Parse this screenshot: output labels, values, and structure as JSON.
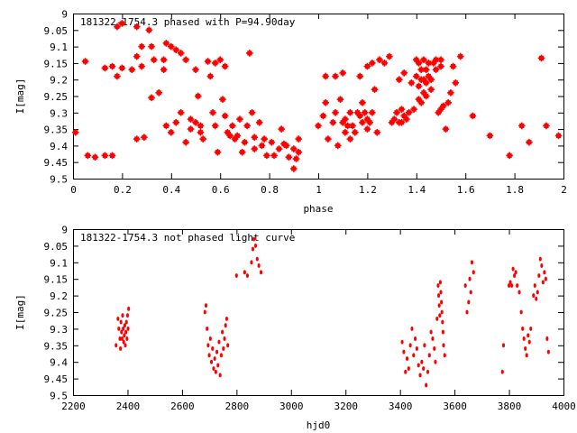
{
  "chart_data": [
    {
      "type": "scatter",
      "title": "181322-1754.3 phased with P=94.90day",
      "xlabel": "phase",
      "ylabel": "I[mag]",
      "xlim": [
        0,
        2
      ],
      "ylim": [
        9,
        9.5
      ],
      "y_inverted": true,
      "x_ticks": [
        "0",
        "0.2",
        "0.4",
        "0.6",
        "0.8",
        "1",
        "1.2",
        "1.4",
        "1.6",
        "1.8",
        "2"
      ],
      "y_ticks": [
        "9",
        "9.05",
        "9.1",
        "9.15",
        "9.2",
        "9.25",
        "9.3",
        "9.35",
        "9.4",
        "9.45",
        "9.5"
      ],
      "marker_color": "#ff0000",
      "grid": false,
      "points": [
        [
          0.01,
          9.36
        ],
        [
          0.05,
          9.145
        ],
        [
          0.06,
          9.43
        ],
        [
          0.09,
          9.435
        ],
        [
          0.13,
          9.43
        ],
        [
          0.13,
          9.165
        ],
        [
          0.16,
          9.43
        ],
        [
          0.16,
          9.16
        ],
        [
          0.18,
          9.19
        ],
        [
          0.18,
          9.04
        ],
        [
          0.2,
          9.165
        ],
        [
          0.2,
          9.03
        ],
        [
          0.24,
          9.17
        ],
        [
          0.26,
          9.38
        ],
        [
          0.26,
          9.04
        ],
        [
          0.26,
          9.13
        ],
        [
          0.28,
          9.1
        ],
        [
          0.28,
          9.16
        ],
        [
          0.29,
          9.375
        ],
        [
          0.31,
          9.05
        ],
        [
          0.32,
          9.255
        ],
        [
          0.32,
          9.1
        ],
        [
          0.33,
          9.14
        ],
        [
          0.35,
          9.24
        ],
        [
          0.37,
          9.14
        ],
        [
          0.37,
          9.17
        ],
        [
          0.38,
          9.34
        ],
        [
          0.38,
          9.09
        ],
        [
          0.4,
          9.36
        ],
        [
          0.4,
          9.1
        ],
        [
          0.42,
          9.33
        ],
        [
          0.42,
          9.11
        ],
        [
          0.44,
          9.12
        ],
        [
          0.44,
          9.3
        ],
        [
          0.46,
          9.14
        ],
        [
          0.46,
          9.39
        ],
        [
          0.48,
          9.32
        ],
        [
          0.48,
          9.35
        ],
        [
          0.5,
          9.33
        ],
        [
          0.5,
          9.17
        ],
        [
          0.51,
          9.25
        ],
        [
          0.52,
          9.34
        ],
        [
          0.52,
          9.36
        ],
        [
          0.53,
          9.38
        ],
        [
          0.55,
          9.145
        ],
        [
          0.56,
          9.19
        ],
        [
          0.57,
          9.3
        ],
        [
          0.58,
          9.34
        ],
        [
          0.58,
          9.15
        ],
        [
          0.59,
          9.42
        ],
        [
          0.6,
          9.14
        ],
        [
          0.61,
          9.26
        ],
        [
          0.62,
          9.16
        ],
        [
          0.62,
          9.31
        ],
        [
          0.63,
          9.36
        ],
        [
          0.64,
          9.37
        ],
        [
          0.65,
          9.34
        ],
        [
          0.66,
          9.38
        ],
        [
          0.67,
          9.37
        ],
        [
          0.68,
          9.32
        ],
        [
          0.69,
          9.42
        ],
        [
          0.7,
          9.39
        ],
        [
          0.71,
          9.34
        ],
        [
          0.72,
          9.12
        ],
        [
          0.73,
          9.3
        ],
        [
          0.74,
          9.41
        ],
        [
          0.74,
          9.375
        ],
        [
          0.76,
          9.33
        ],
        [
          0.77,
          9.4
        ],
        [
          0.78,
          9.38
        ],
        [
          0.79,
          9.43
        ],
        [
          0.81,
          9.39
        ],
        [
          0.82,
          9.43
        ],
        [
          0.84,
          9.41
        ],
        [
          0.85,
          9.35
        ],
        [
          0.86,
          9.395
        ],
        [
          0.87,
          9.4
        ],
        [
          0.88,
          9.435
        ],
        [
          0.9,
          9.47
        ],
        [
          0.9,
          9.41
        ],
        [
          0.91,
          9.44
        ],
        [
          0.92,
          9.42
        ],
        [
          0.92,
          9.38
        ],
        [
          1.0,
          9.34
        ],
        [
          1.02,
          9.31
        ],
        [
          1.03,
          9.27
        ],
        [
          1.03,
          9.19
        ],
        [
          1.04,
          9.38
        ],
        [
          1.06,
          9.33
        ],
        [
          1.07,
          9.19
        ],
        [
          1.07,
          9.3
        ],
        [
          1.08,
          9.4
        ],
        [
          1.09,
          9.26
        ],
        [
          1.1,
          9.33
        ],
        [
          1.1,
          9.18
        ],
        [
          1.11,
          9.32
        ],
        [
          1.11,
          9.36
        ],
        [
          1.12,
          9.34
        ],
        [
          1.13,
          9.3
        ],
        [
          1.13,
          9.38
        ],
        [
          1.14,
          9.34
        ],
        [
          1.15,
          9.36
        ],
        [
          1.16,
          9.3
        ],
        [
          1.17,
          9.31
        ],
        [
          1.17,
          9.19
        ],
        [
          1.18,
          9.27
        ],
        [
          1.18,
          9.33
        ],
        [
          1.19,
          9.3
        ],
        [
          1.2,
          9.32
        ],
        [
          1.2,
          9.35
        ],
        [
          1.2,
          9.16
        ],
        [
          1.21,
          9.33
        ],
        [
          1.22,
          9.3
        ],
        [
          1.22,
          9.15
        ],
        [
          1.23,
          9.23
        ],
        [
          1.24,
          9.36
        ],
        [
          1.25,
          9.14
        ],
        [
          1.27,
          9.15
        ],
        [
          1.29,
          9.13
        ],
        [
          1.3,
          9.33
        ],
        [
          1.31,
          9.32
        ],
        [
          1.32,
          9.3
        ],
        [
          1.33,
          9.33
        ],
        [
          1.33,
          9.2
        ],
        [
          1.34,
          9.33
        ],
        [
          1.34,
          9.29
        ],
        [
          1.35,
          9.18
        ],
        [
          1.35,
          9.31
        ],
        [
          1.36,
          9.32
        ],
        [
          1.37,
          9.3
        ],
        [
          1.38,
          9.21
        ],
        [
          1.39,
          9.29
        ],
        [
          1.4,
          9.19
        ],
        [
          1.4,
          9.14
        ],
        [
          1.41,
          9.15
        ],
        [
          1.41,
          9.22
        ],
        [
          1.41,
          9.26
        ],
        [
          1.42,
          9.17
        ],
        [
          1.42,
          9.2
        ],
        [
          1.42,
          9.27
        ],
        [
          1.43,
          9.14
        ],
        [
          1.43,
          9.2
        ],
        [
          1.43,
          9.24
        ],
        [
          1.44,
          9.17
        ],
        [
          1.44,
          9.21
        ],
        [
          1.44,
          9.25
        ],
        [
          1.45,
          9.15
        ],
        [
          1.45,
          9.19
        ],
        [
          1.46,
          9.2
        ],
        [
          1.46,
          9.23
        ],
        [
          1.47,
          9.15
        ],
        [
          1.48,
          9.14
        ],
        [
          1.48,
          9.17
        ],
        [
          1.49,
          9.3
        ],
        [
          1.5,
          9.16
        ],
        [
          1.5,
          9.29
        ],
        [
          1.5,
          9.14
        ],
        [
          1.51,
          9.28
        ],
        [
          1.52,
          9.35
        ],
        [
          1.53,
          9.27
        ],
        [
          1.54,
          9.24
        ],
        [
          1.55,
          9.16
        ],
        [
          1.56,
          9.21
        ],
        [
          1.58,
          9.13
        ],
        [
          1.63,
          9.31
        ],
        [
          1.7,
          9.37
        ],
        [
          1.78,
          9.43
        ],
        [
          1.83,
          9.34
        ],
        [
          1.86,
          9.39
        ],
        [
          1.91,
          9.135
        ],
        [
          1.93,
          9.34
        ],
        [
          1.98,
          9.37
        ]
      ]
    },
    {
      "type": "scatter",
      "title": "181322-1754.3 not phased light curve",
      "xlabel": "hjd0",
      "ylabel": "I[mag]",
      "xlim": [
        2200,
        4000
      ],
      "ylim": [
        9,
        9.5
      ],
      "y_inverted": true,
      "x_ticks": [
        "2200",
        "2400",
        "2600",
        "2800",
        "3000",
        "3200",
        "3400",
        "3600",
        "3800",
        "4000"
      ],
      "y_ticks": [
        "9",
        "9.05",
        "9.1",
        "9.15",
        "9.2",
        "9.25",
        "9.3",
        "9.35",
        "9.4",
        "9.45",
        "9.5"
      ],
      "marker_color": "#ff0000",
      "grid": false,
      "points": [
        [
          2358,
          9.35
        ],
        [
          2365,
          9.27
        ],
        [
          2368,
          9.3
        ],
        [
          2372,
          9.33
        ],
        [
          2374,
          9.36
        ],
        [
          2376,
          9.28
        ],
        [
          2378,
          9.31
        ],
        [
          2380,
          9.33
        ],
        [
          2382,
          9.26
        ],
        [
          2384,
          9.3
        ],
        [
          2386,
          9.34
        ],
        [
          2388,
          9.32
        ],
        [
          2390,
          9.29
        ],
        [
          2392,
          9.35
        ],
        [
          2394,
          9.31
        ],
        [
          2396,
          9.28
        ],
        [
          2398,
          9.33
        ],
        [
          2400,
          9.26
        ],
        [
          2402,
          9.3
        ],
        [
          2404,
          9.24
        ],
        [
          2684,
          9.25
        ],
        [
          2688,
          9.23
        ],
        [
          2692,
          9.3
        ],
        [
          2696,
          9.35
        ],
        [
          2700,
          9.38
        ],
        [
          2704,
          9.33
        ],
        [
          2708,
          9.4
        ],
        [
          2712,
          9.36
        ],
        [
          2716,
          9.42
        ],
        [
          2720,
          9.39
        ],
        [
          2724,
          9.43
        ],
        [
          2728,
          9.37
        ],
        [
          2732,
          9.41
        ],
        [
          2736,
          9.34
        ],
        [
          2740,
          9.44
        ],
        [
          2744,
          9.38
        ],
        [
          2748,
          9.31
        ],
        [
          2752,
          9.36
        ],
        [
          2756,
          9.33
        ],
        [
          2760,
          9.29
        ],
        [
          2764,
          9.27
        ],
        [
          2768,
          9.35
        ],
        [
          2800,
          9.14
        ],
        [
          2830,
          9.13
        ],
        [
          2840,
          9.14
        ],
        [
          2855,
          9.1
        ],
        [
          2860,
          9.06
        ],
        [
          2864,
          9.03
        ],
        [
          2870,
          9.05
        ],
        [
          2876,
          9.09
        ],
        [
          2882,
          9.11
        ],
        [
          2890,
          9.13
        ],
        [
          3408,
          9.34
        ],
        [
          3414,
          9.37
        ],
        [
          3420,
          9.43
        ],
        [
          3426,
          9.39
        ],
        [
          3432,
          9.42
        ],
        [
          3438,
          9.35
        ],
        [
          3444,
          9.3
        ],
        [
          3450,
          9.38
        ],
        [
          3456,
          9.33
        ],
        [
          3462,
          9.36
        ],
        [
          3468,
          9.41
        ],
        [
          3474,
          9.44
        ],
        [
          3480,
          9.4
        ],
        [
          3486,
          9.42
        ],
        [
          3490,
          9.35
        ],
        [
          3496,
          9.47
        ],
        [
          3502,
          9.43
        ],
        [
          3508,
          9.38
        ],
        [
          3514,
          9.31
        ],
        [
          3520,
          9.33
        ],
        [
          3526,
          9.36
        ],
        [
          3530,
          9.4
        ],
        [
          3536,
          9.27
        ],
        [
          3540,
          9.17
        ],
        [
          3542,
          9.2
        ],
        [
          3544,
          9.23
        ],
        [
          3546,
          9.26
        ],
        [
          3548,
          9.16
        ],
        [
          3550,
          9.19
        ],
        [
          3552,
          9.22
        ],
        [
          3554,
          9.25
        ],
        [
          3556,
          9.28
        ],
        [
          3558,
          9.31
        ],
        [
          3560,
          9.35
        ],
        [
          3564,
          9.38
        ],
        [
          3640,
          9.17
        ],
        [
          3646,
          9.25
        ],
        [
          3652,
          9.22
        ],
        [
          3656,
          9.15
        ],
        [
          3660,
          9.19
        ],
        [
          3664,
          9.1
        ],
        [
          3670,
          9.13
        ],
        [
          3776,
          9.43
        ],
        [
          3780,
          9.35
        ],
        [
          3800,
          9.17
        ],
        [
          3805,
          9.16
        ],
        [
          3810,
          9.17
        ],
        [
          3815,
          9.12
        ],
        [
          3820,
          9.14
        ],
        [
          3825,
          9.13
        ],
        [
          3830,
          9.17
        ],
        [
          3838,
          9.19
        ],
        [
          3845,
          9.25
        ],
        [
          3850,
          9.3
        ],
        [
          3855,
          9.33
        ],
        [
          3860,
          9.36
        ],
        [
          3865,
          9.38
        ],
        [
          3870,
          9.32
        ],
        [
          3875,
          9.34
        ],
        [
          3880,
          9.3
        ],
        [
          3890,
          9.2
        ],
        [
          3895,
          9.17
        ],
        [
          3900,
          9.21
        ],
        [
          3905,
          9.19
        ],
        [
          3910,
          9.14
        ],
        [
          3915,
          9.09
        ],
        [
          3920,
          9.11
        ],
        [
          3925,
          9.16
        ],
        [
          3930,
          9.13
        ],
        [
          3935,
          9.15
        ],
        [
          3940,
          9.33
        ],
        [
          3945,
          9.37
        ]
      ]
    }
  ]
}
